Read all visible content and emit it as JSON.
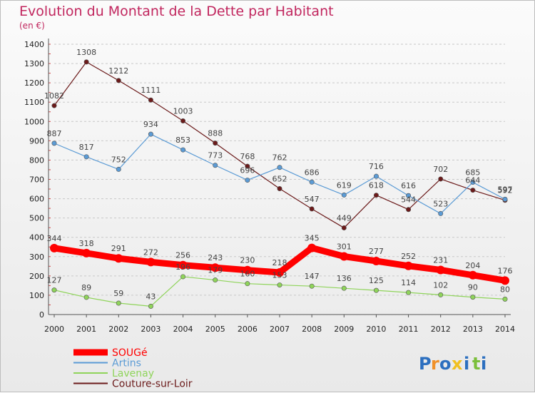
{
  "chart_data": {
    "type": "line",
    "title": "Evolution du Montant de la Dette par Habitant",
    "subtitle": "(en €)",
    "xlabel": "",
    "ylabel": "",
    "categories": [
      "2000",
      "2001",
      "2002",
      "2003",
      "2004",
      "2005",
      "2006",
      "2007",
      "2008",
      "2009",
      "2010",
      "2011",
      "2012",
      "2013",
      "2014"
    ],
    "ylim": [
      0,
      1400
    ],
    "yticks": [
      0,
      100,
      200,
      300,
      400,
      500,
      600,
      700,
      800,
      900,
      1000,
      1100,
      1200,
      1300,
      1400
    ],
    "grid": "horizontal dashed",
    "legend_position": "bottom-left",
    "series": [
      {
        "name": "SOUGé",
        "color": "#ff0000",
        "values": [
          344,
          318,
          291,
          272,
          256,
          243,
          230,
          218,
          345,
          301,
          277,
          252,
          231,
          204,
          176
        ]
      },
      {
        "name": "Artins",
        "color": "#5b9bd5",
        "values": [
          887,
          817,
          752,
          934,
          853,
          773,
          696,
          762,
          686,
          619,
          716,
          616,
          523,
          685,
          597
        ]
      },
      {
        "name": "Lavenay",
        "color": "#8fd45a",
        "values": [
          127,
          89,
          59,
          43,
          196,
          179,
          160,
          153,
          147,
          136,
          125,
          114,
          102,
          90,
          80
        ]
      },
      {
        "name": "Couture-sur-Loir",
        "color": "#6b1a1a",
        "values": [
          1082,
          1308,
          1212,
          1111,
          1003,
          888,
          768,
          652,
          547,
          449,
          618,
          544,
          702,
          644,
          592
        ]
      }
    ]
  },
  "logo": {
    "letters": [
      "P",
      "r",
      "o",
      "x",
      "i",
      "t",
      "i"
    ],
    "colors": [
      "#2c6fbf",
      "#f0912a",
      "#2c6fbf",
      "#f0c020",
      "#2c6fbf",
      "#7bbf3a",
      "#2c6fbf"
    ]
  }
}
